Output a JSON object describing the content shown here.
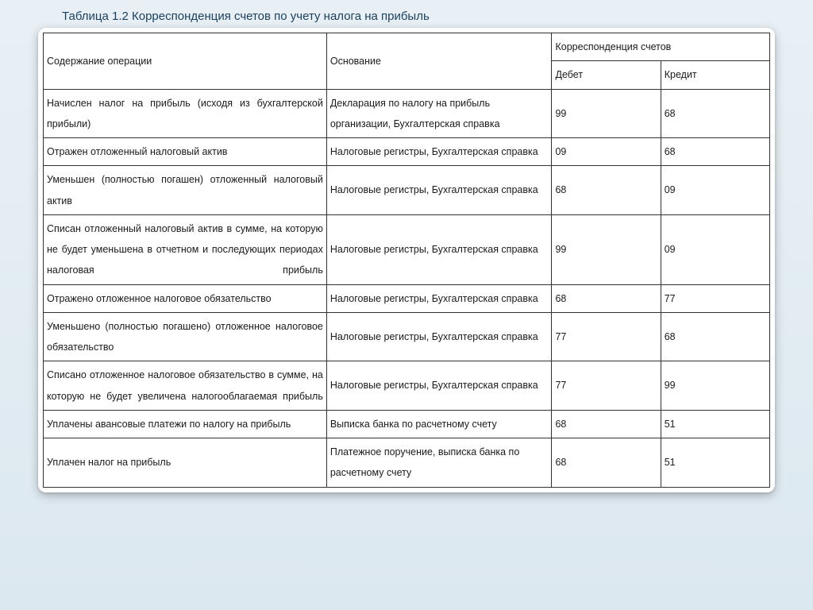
{
  "title": "Таблица 1.2 Корреспонденция счетов по учету налога на прибыль",
  "table": {
    "type": "table",
    "headers": {
      "operation": "Содержание операции",
      "basis": "Основание",
      "correspondence": "Корреспонденция счетов",
      "debit": "Дебет",
      "credit": "Кредит"
    },
    "columns": [
      "operation",
      "basis",
      "debit",
      "credit"
    ],
    "col_widths_pct": [
      39,
      31,
      15,
      15
    ],
    "border_color": "#333333",
    "background_color": "#ffffff",
    "font_size_pt": 12.5,
    "rows": [
      {
        "operation": "Начислен налог на прибыль (исходя из бухгалтерской прибыли)",
        "basis": "Декларация по налогу на прибыль организации, Бухгалтерская справка",
        "debit": "99",
        "credit": "68",
        "op_justify": false
      },
      {
        "operation": "Отражен отложенный налоговый актив",
        "basis": "Налоговые регистры, Бухгалтерская справка",
        "debit": "09",
        "credit": "68",
        "op_justify": false
      },
      {
        "operation": "Уменьшен (полностью погашен) отложенный налоговый актив",
        "basis": "Налоговые регистры, Бухгалтерская справка",
        "debit": "68",
        "credit": "09",
        "op_justify": true
      },
      {
        "operation": "Списан отложенный налоговый актив в сумме, на которую не будет уменьшена в отчетном и последующих периодах налоговая прибыль",
        "basis": "Налоговые регистры, Бухгалтерская справка",
        "debit": "99",
        "credit": "09",
        "op_justify": true
      },
      {
        "operation": "Отражено отложенное налоговое обязательство",
        "basis": "Налоговые регистры, Бухгалтерская справка",
        "debit": "68",
        "credit": "77",
        "op_justify": false
      },
      {
        "operation": "Уменьшено (полностью погашено) отложенное налоговое обязательство",
        "basis": "Налоговые регистры, Бухгалтерская справка",
        "debit": "77",
        "credit": "68",
        "op_justify": true
      },
      {
        "operation": "Списано отложенное налоговое обязательство в сумме, на которую не будет увеличена налогооблагаемая прибыль",
        "basis": "Налоговые регистры, Бухгалтерская справка",
        "debit": "77",
        "credit": "99",
        "op_justify": true
      },
      {
        "operation": "Уплачены авансовые платежи по налогу на прибыль",
        "basis": "Выписка банка по расчетному счету",
        "debit": "68",
        "credit": "51",
        "op_justify": false
      },
      {
        "operation": "Уплачен налог на прибыль",
        "basis": "Платежное поручение, выписка банка по расчетному счету",
        "debit": "68",
        "credit": "51",
        "op_justify": false
      }
    ]
  },
  "style": {
    "page_bg_top": "#e8f0f5",
    "page_bg_bottom": "#dce8f0",
    "title_color": "#1a3f5c",
    "card_bg": "#ffffff",
    "card_shadow": "rgba(0,0,0,0.25)"
  }
}
